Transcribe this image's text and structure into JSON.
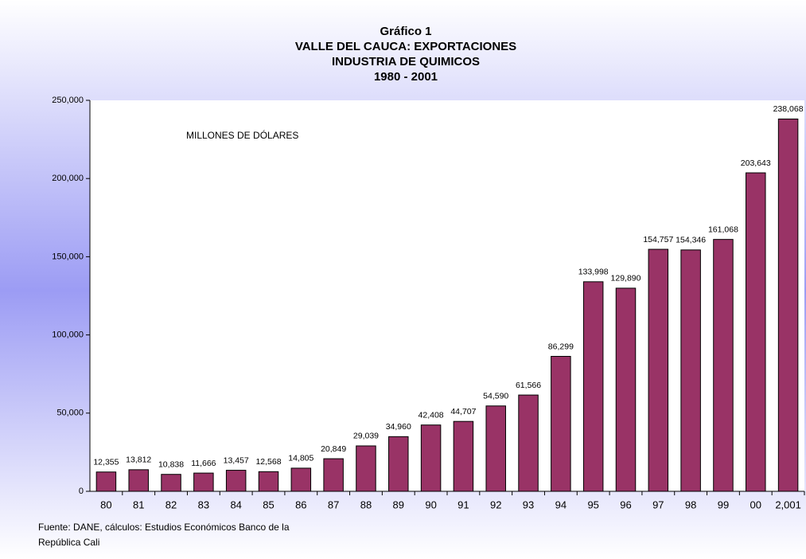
{
  "chart_data": {
    "type": "bar",
    "title": [
      "Gráfico 1",
      "VALLE DEL CAUCA: EXPORTACIONES",
      "INDUSTRIA DE QUIMICOS",
      "1980 - 2001"
    ],
    "annotation": "MILLONES DE DÓLARES",
    "source": [
      "Fuente: DANE, cálculos: Estudios Económicos Banco de la",
      "República Cali"
    ],
    "categories": [
      "80",
      "81",
      "82",
      "83",
      "84",
      "85",
      "86",
      "87",
      "88",
      "89",
      "90",
      "91",
      "92",
      "93",
      "94",
      "95",
      "96",
      "97",
      "98",
      "99",
      "00",
      "2,001"
    ],
    "values": [
      12355,
      13812,
      10838,
      11666,
      13457,
      12568,
      14805,
      20849,
      29039,
      34960,
      42408,
      44707,
      54590,
      61566,
      86299,
      133998,
      129890,
      154757,
      154346,
      161068,
      203643,
      238068
    ],
    "value_labels": [
      "12,355",
      "13,812",
      "10,838",
      "11,666",
      "13,457",
      "12,568",
      "14,805",
      "20,849",
      "29,039",
      "34,960",
      "42,408",
      "44,707",
      "54,590",
      "61,566",
      "86,299",
      "133,998",
      "129,890",
      "154,757",
      "154,346",
      "161,068",
      "203,643",
      "238,068"
    ],
    "color": "#993366",
    "ylim": [
      0,
      250000
    ],
    "yticks": [
      0,
      {
        "value": 50000,
        "label": "50,000"
      },
      {
        "value": 100000,
        "label": "100,000"
      },
      {
        "value": 150000,
        "label": "150,000"
      },
      {
        "value": 200000,
        "label": "200,000"
      },
      {
        "value": 250000,
        "label": "250,000"
      }
    ],
    "grid": false
  }
}
